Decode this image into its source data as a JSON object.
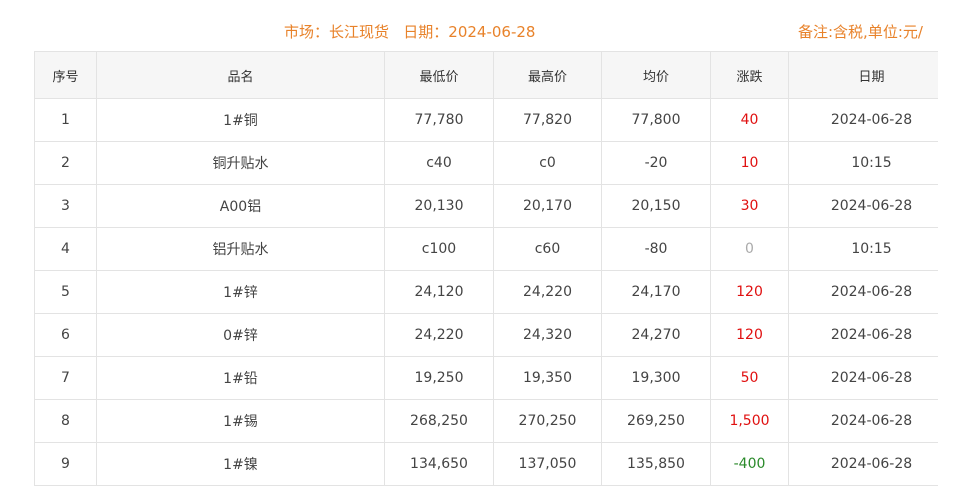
{
  "header": {
    "title": "市场：长江现货   日期：2024-06-28",
    "note": "备注:含税,单位:元/"
  },
  "colors": {
    "accent": "#e8822a",
    "up": "#e01010",
    "down": "#2a8a2a",
    "flat": "#aaaaaa"
  },
  "table": {
    "columns": [
      "序号",
      "品名",
      "最低价",
      "最高价",
      "均价",
      "涨跌",
      "日期"
    ],
    "rows": [
      [
        "1",
        "1#铜",
        "77,780",
        "77,820",
        "77,800",
        "40",
        "2024-06-28"
      ],
      [
        "2",
        "铜升贴水",
        "c40",
        "c0",
        "-20",
        "10",
        "10:15"
      ],
      [
        "3",
        "A00铝",
        "20,130",
        "20,170",
        "20,150",
        "30",
        "2024-06-28"
      ],
      [
        "4",
        "铝升贴水",
        "c100",
        "c60",
        "-80",
        "0",
        "10:15"
      ],
      [
        "5",
        "1#锌",
        "24,120",
        "24,220",
        "24,170",
        "120",
        "2024-06-28"
      ],
      [
        "6",
        "0#锌",
        "24,220",
        "24,320",
        "24,270",
        "120",
        "2024-06-28"
      ],
      [
        "7",
        "1#铅",
        "19,250",
        "19,350",
        "19,300",
        "50",
        "2024-06-28"
      ],
      [
        "8",
        "1#锡",
        "268,250",
        "270,250",
        "269,250",
        "1,500",
        "2024-06-28"
      ],
      [
        "9",
        "1#镍",
        "134,650",
        "137,050",
        "135,850",
        "-400",
        "2024-06-28"
      ]
    ]
  }
}
